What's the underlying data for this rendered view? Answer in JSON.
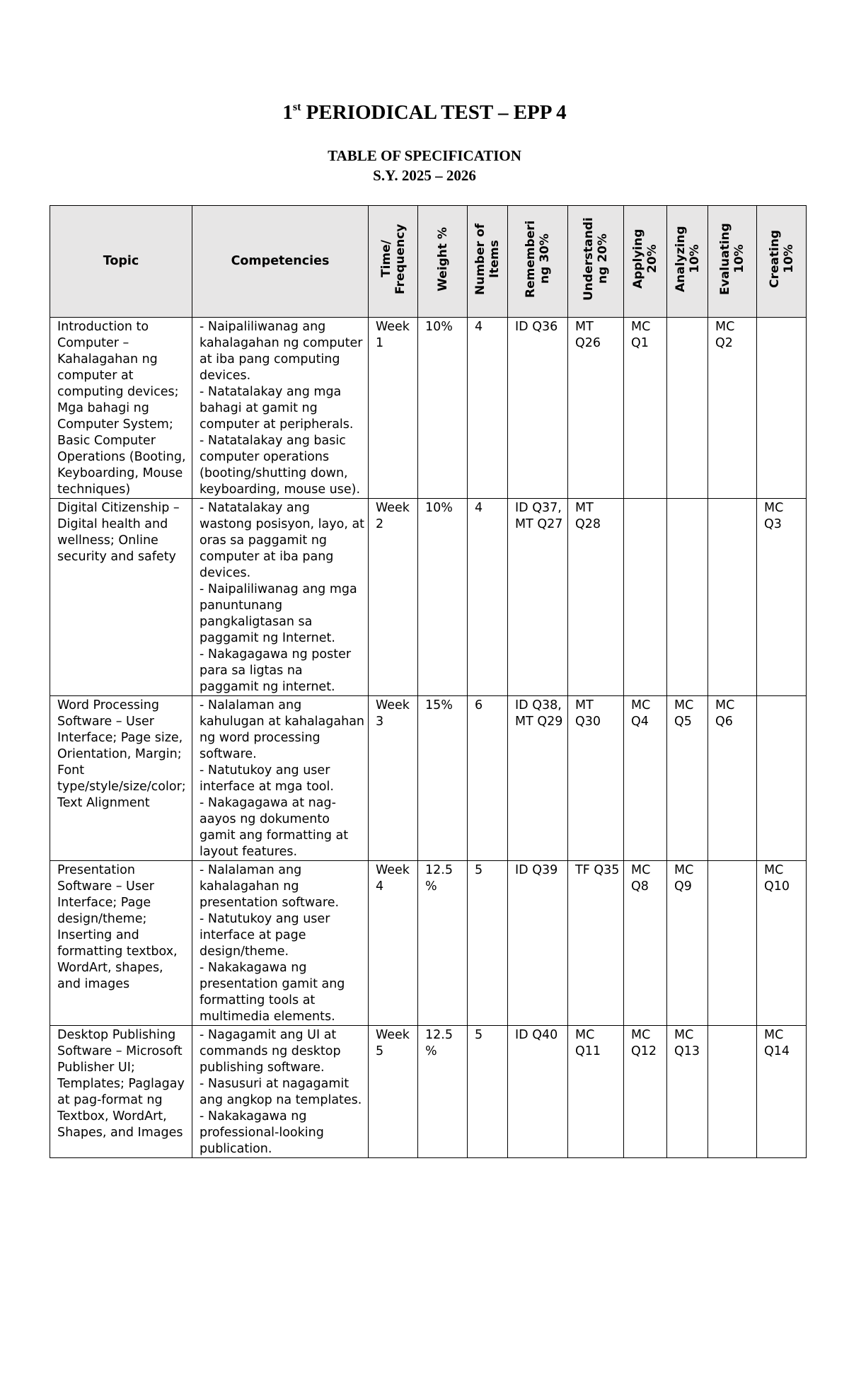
{
  "header": {
    "title_number": "1",
    "title_suffix": "st",
    "title_rest": "PERIODICAL TEST – EPP 4",
    "subtitle": "TABLE OF SPECIFICATION",
    "school_year": "S.Y. 2025 – 2026"
  },
  "table": {
    "columns": [
      "Topic",
      "Competencies",
      "Time/ Frequency",
      "Weight %",
      "Number of Items",
      "Remembering 30%",
      "Understanding 20%",
      "Applying 20%",
      "Analyzing 10%",
      "Evaluating 10%",
      "Creating 10%"
    ],
    "rows": [
      {
        "topic": "Introduction to Computer – Kahalagahan ng computer at computing devices; Mga bahagi ng Computer System; Basic Computer Operations (Booting, Keyboarding, Mouse techniques)",
        "competencies": [
          "- Naipaliliwanag ang kahalagahan ng computer at iba pang computing devices.",
          "- Natatalakay ang mga bahagi at gamit ng computer at peripherals.",
          "- Natatalakay ang basic computer operations (booting/shutting down, keyboarding, mouse use)."
        ],
        "time": "Week 1",
        "weight": "10%",
        "items": 4,
        "levels": [
          "ID Q36",
          "MT Q26",
          "MC Q1",
          null,
          "MC Q2",
          null
        ]
      },
      {
        "topic": "Digital Citizenship – Digital health and wellness; Online security and safety",
        "competencies": [
          "- Natatalakay ang wastong posisyon, layo, at oras sa paggamit ng computer at iba pang devices.",
          "- Naipaliliwanag ang mga panuntunang pangkaligtasan sa paggamit ng Internet.",
          "- Nakagagawa ng poster para sa ligtas na paggamit ng internet."
        ],
        "time": "Week 2",
        "weight": "10%",
        "items": 4,
        "levels": [
          "ID Q37, MT Q27",
          "MT Q28",
          null,
          null,
          null,
          "MC Q3"
        ]
      },
      {
        "topic": "Word Processing Software – User Interface; Page size, Orientation, Margin; Font type/style/size/color; Text Alignment",
        "competencies": [
          "- Nalalaman ang kahulugan at kahalagahan ng word processing software.",
          "- Natutukoy ang user interface at mga tool.",
          "- Nakagagawa at nag-aayos ng dokumento gamit ang formatting at layout features."
        ],
        "time": "Week 3",
        "weight": "15%",
        "items": 6,
        "levels": [
          "ID Q38, MT Q29",
          "MT Q30",
          "MC Q4",
          "MC Q5",
          "MC Q6",
          null
        ]
      },
      {
        "topic": "Presentation Software – User Interface; Page design/theme; Inserting and formatting textbox, WordArt, shapes, and images",
        "competencies": [
          "- Nalalaman ang kahalagahan ng presentation software.",
          "- Natutukoy ang user interface at page design/theme.",
          "- Nakakagawa ng presentation gamit ang formatting tools at multimedia elements."
        ],
        "time": "Week 4",
        "weight": "12.5%",
        "items": 5,
        "levels": [
          "ID Q39",
          "TF Q35",
          "MC Q8",
          "MC Q9",
          null,
          "MC Q10"
        ]
      },
      {
        "topic": "Desktop Publishing Software – Microsoft Publisher UI; Templates; Paglagay at pag-format ng Textbox, WordArt, Shapes, and Images",
        "competencies": [
          "- Nagagamit ang UI at commands ng desktop publishing software.",
          "- Nasusuri at nagagamit ang angkop na templates.",
          "- Nakakagawa ng professional-looking publication."
        ],
        "time": "Week 5",
        "weight": "12.5%",
        "items": 5,
        "levels": [
          "ID Q40",
          "MC Q11",
          "MC Q12",
          "MC Q13",
          null,
          "MC Q14"
        ]
      }
    ]
  }
}
